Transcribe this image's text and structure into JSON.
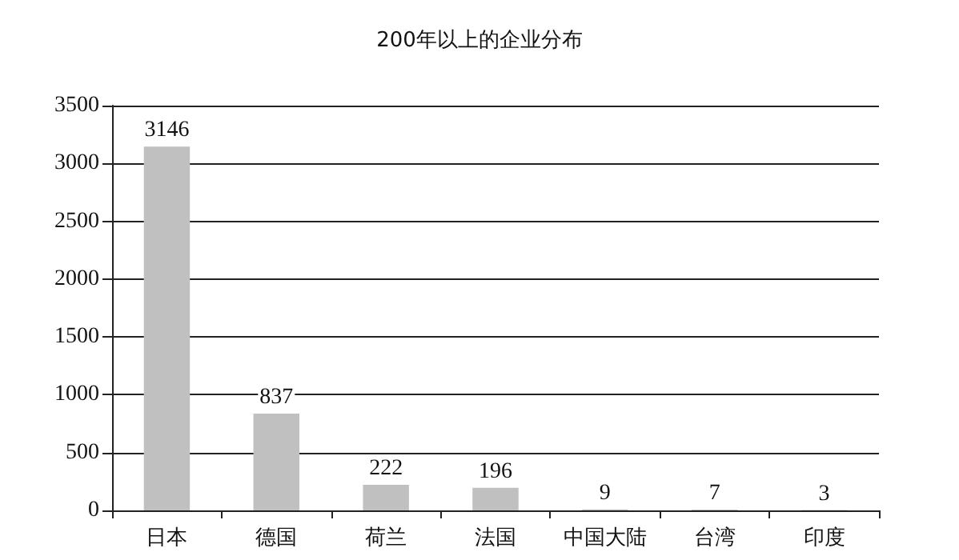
{
  "chart_data": {
    "type": "bar",
    "title": "200年以上的企业分布",
    "categories": [
      "日本",
      "德国",
      "荷兰",
      "法国",
      "中国大陆",
      "台湾",
      "印度"
    ],
    "values": [
      3146,
      837,
      222,
      196,
      9,
      7,
      3
    ],
    "color": "#c0c0c0",
    "ylim": [
      0,
      3500
    ],
    "yticks": [
      0,
      500,
      1000,
      1500,
      2000,
      2500,
      3000,
      3500
    ],
    "grid": "y",
    "data_labels": true
  }
}
